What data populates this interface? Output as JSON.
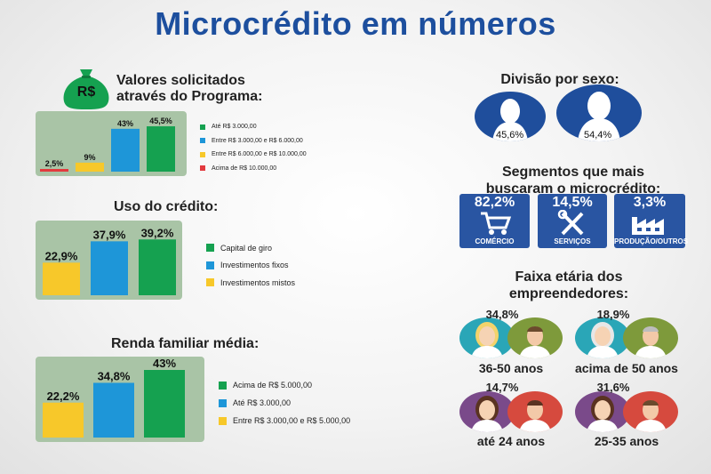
{
  "title": "Microcrédito em números",
  "valores": {
    "title_line1": "Valores solicitados",
    "title_line2": "através do Programa:",
    "icon_text": "R$",
    "chart_data": {
      "type": "bar",
      "categories": [
        "Acima de R$ 10.000,00",
        "Entre R$ 6.000,00 e R$ 10.000,00",
        "Entre R$ 3.000,00 e R$ 6.000,00",
        "Até R$ 3.000,00"
      ],
      "values": [
        2.5,
        9,
        43,
        45.5
      ],
      "value_labels": [
        "2,5%",
        "9%",
        "43%",
        "45,5%"
      ],
      "colors": [
        "#e23a3e",
        "#f7c82a",
        "#1e96d8",
        "#15a150"
      ],
      "ylim": [
        0,
        50
      ]
    },
    "legend": [
      {
        "label": "Até R$ 3.000,00",
        "color": "#15a150"
      },
      {
        "label": "Entre R$ 3.000,00 e R$ 6.000,00",
        "color": "#1e96d8"
      },
      {
        "label": "Entre R$ 6.000,00 e R$ 10.000,00",
        "color": "#f7c82a"
      },
      {
        "label": "Acima de R$ 10.000,00",
        "color": "#e23a3e"
      }
    ]
  },
  "uso": {
    "title": "Uso do crédito:",
    "chart_data": {
      "type": "bar",
      "categories": [
        "Investimentos mistos",
        "Investimentos fixos",
        "Capital de giro"
      ],
      "values": [
        22.9,
        37.9,
        39.2
      ],
      "value_labels": [
        "22,9%",
        "37,9%",
        "39,2%"
      ],
      "colors": [
        "#f7c82a",
        "#1e96d8",
        "#15a150"
      ],
      "ylim": [
        0,
        40
      ]
    },
    "legend": [
      {
        "label": "Capital de giro",
        "color": "#15a150"
      },
      {
        "label": "Investimentos fixos",
        "color": "#1e96d8"
      },
      {
        "label": "Investimentos mistos",
        "color": "#f7c82a"
      }
    ]
  },
  "renda": {
    "title": "Renda familiar média:",
    "chart_data": {
      "type": "bar",
      "categories": [
        "Entre R$ 3.000,00 e R$ 5.000,00",
        "Até R$ 3.000,00",
        "Acima de R$ 5.000,00"
      ],
      "values": [
        22.2,
        34.8,
        43
      ],
      "value_labels": [
        "22,2%",
        "34,8%",
        "43%"
      ],
      "colors": [
        "#f7c82a",
        "#1e96d8",
        "#15a150"
      ],
      "ylim": [
        0,
        43
      ]
    },
    "legend": [
      {
        "label": "Acima de R$ 5.000,00",
        "color": "#15a150"
      },
      {
        "label": "Até R$ 3.000,00",
        "color": "#1e96d8"
      },
      {
        "label": "Entre R$ 3.000,00 e R$ 5.000,00",
        "color": "#f7c82a"
      }
    ]
  },
  "sexo": {
    "title": "Divisão por sexo:",
    "female": "45,6%",
    "male": "54,4%"
  },
  "segmentos": {
    "title_line1": "Segmentos que mais",
    "title_line2": "buscaram o microcrédito:",
    "items": [
      {
        "value": "82,2%",
        "label": "COMÉRCIO",
        "icon": "shopping-cart-icon"
      },
      {
        "value": "14,5%",
        "label": "SERVIÇOS",
        "icon": "tools-icon"
      },
      {
        "value": "3,3%",
        "label": "PRODUÇÃO/OUTROS",
        "icon": "factory-icon"
      }
    ]
  },
  "faixa": {
    "title_line1": "Faixa etária dos",
    "title_line2": "empreendedores:",
    "groups": [
      {
        "value": "34,8%",
        "label": "36-50 anos"
      },
      {
        "value": "18,9%",
        "label": "acima de 50 anos"
      },
      {
        "value": "14,7%",
        "label": "até 24 anos"
      },
      {
        "value": "31,6%",
        "label": "25-35 anos"
      }
    ]
  }
}
